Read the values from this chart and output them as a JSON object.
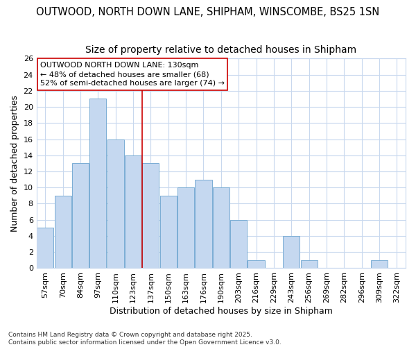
{
  "title1": "OUTWOOD, NORTH DOWN LANE, SHIPHAM, WINSCOMBE, BS25 1SN",
  "title2": "Size of property relative to detached houses in Shipham",
  "xlabel": "Distribution of detached houses by size in Shipham",
  "ylabel": "Number of detached properties",
  "categories": [
    "57sqm",
    "70sqm",
    "84sqm",
    "97sqm",
    "110sqm",
    "123sqm",
    "137sqm",
    "150sqm",
    "163sqm",
    "176sqm",
    "190sqm",
    "203sqm",
    "216sqm",
    "229sqm",
    "243sqm",
    "256sqm",
    "269sqm",
    "282sqm",
    "296sqm",
    "309sqm",
    "322sqm"
  ],
  "values": [
    5,
    9,
    13,
    21,
    16,
    14,
    13,
    9,
    10,
    11,
    10,
    6,
    1,
    0,
    4,
    1,
    0,
    0,
    0,
    1,
    0
  ],
  "bar_color": "#c5d8f0",
  "bar_edge_color": "#7aadd4",
  "grid_color": "#c8d8ee",
  "background_color": "#ffffff",
  "plot_bg_color": "#ffffff",
  "vline_x_index": 5,
  "vline_color": "#cc0000",
  "annotation_text": "OUTWOOD NORTH DOWN LANE: 130sqm\n← 48% of detached houses are smaller (68)\n52% of semi-detached houses are larger (74) →",
  "annotation_box_color": "white",
  "annotation_box_edge": "#cc0000",
  "ylim": [
    0,
    26
  ],
  "yticks": [
    0,
    2,
    4,
    6,
    8,
    10,
    12,
    14,
    16,
    18,
    20,
    22,
    24,
    26
  ],
  "footer": "Contains HM Land Registry data © Crown copyright and database right 2025.\nContains public sector information licensed under the Open Government Licence v3.0.",
  "title_fontsize": 10.5,
  "subtitle_fontsize": 10,
  "tick_fontsize": 8,
  "ylabel_fontsize": 9,
  "xlabel_fontsize": 9,
  "annotation_fontsize": 8
}
